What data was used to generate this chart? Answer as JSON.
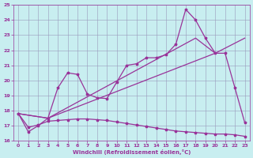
{
  "xlabel": "Windchill (Refroidissement éolien,°C)",
  "xlim": [
    -0.5,
    23.5
  ],
  "ylim": [
    16,
    25
  ],
  "yticks": [
    16,
    17,
    18,
    19,
    20,
    21,
    22,
    23,
    24,
    25
  ],
  "xticks": [
    0,
    1,
    2,
    3,
    4,
    5,
    6,
    7,
    8,
    9,
    10,
    11,
    12,
    13,
    14,
    15,
    16,
    17,
    18,
    19,
    20,
    21,
    22,
    23
  ],
  "background_color": "#c8eef0",
  "line_color": "#993399",
  "grid_color": "#9999bb",
  "line1_x": [
    0,
    1,
    2,
    3,
    4,
    5,
    6,
    7,
    8,
    9,
    10,
    11,
    12,
    13,
    14,
    15,
    16,
    17,
    18,
    19,
    20,
    21,
    22,
    23
  ],
  "line1_y": [
    17.8,
    16.6,
    17.0,
    17.5,
    19.5,
    20.5,
    20.4,
    19.1,
    18.85,
    18.8,
    19.9,
    21.0,
    21.1,
    21.5,
    21.5,
    21.7,
    22.4,
    24.7,
    24.0,
    22.8,
    21.8,
    21.8,
    19.5,
    17.2
  ],
  "line2_x": [
    0,
    3,
    20,
    23
  ],
  "line2_y": [
    17.8,
    17.5,
    21.8,
    22.8
  ],
  "line3_x": [
    0,
    3,
    18,
    20
  ],
  "line3_y": [
    17.8,
    17.5,
    22.8,
    21.8
  ],
  "line4_x": [
    0,
    1,
    2,
    3,
    4,
    5,
    6,
    7,
    8,
    9,
    10,
    11,
    12,
    13,
    14,
    15,
    16,
    17,
    18,
    19,
    20,
    21,
    22,
    23
  ],
  "line4_y": [
    17.8,
    16.9,
    17.05,
    17.3,
    17.35,
    17.4,
    17.45,
    17.45,
    17.4,
    17.35,
    17.25,
    17.15,
    17.05,
    16.95,
    16.85,
    16.75,
    16.65,
    16.6,
    16.55,
    16.5,
    16.45,
    16.45,
    16.4,
    16.3
  ]
}
